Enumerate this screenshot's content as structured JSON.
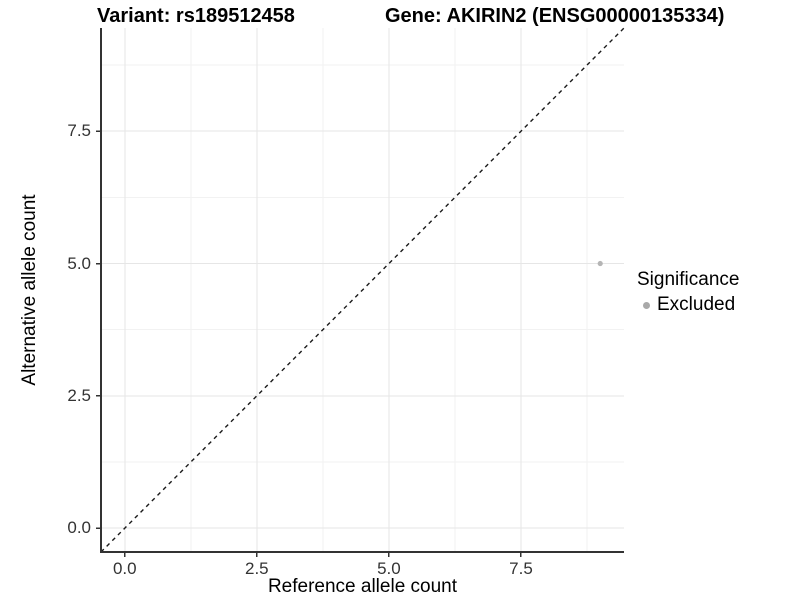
{
  "header": {
    "variant_title": "Variant: rs189512458",
    "gene_title": "Gene: AKIRIN2 (ENSG00000135334)"
  },
  "chart_data": {
    "type": "scatter",
    "title": "Variant: rs189512458    Gene: AKIRIN2 (ENSG00000135334)",
    "xlabel": "Reference allele count",
    "ylabel": "Alternative allele count",
    "xlim": [
      -0.45,
      9.45
    ],
    "ylim": [
      -0.45,
      9.45
    ],
    "x_ticks": [
      0,
      2.5,
      5,
      7.5
    ],
    "x_tick_labels": [
      "0.0",
      "2.5",
      "5.0",
      "7.5"
    ],
    "y_ticks": [
      0,
      2.5,
      5,
      7.5
    ],
    "y_tick_labels": [
      "0.0",
      "2.5",
      "5.0",
      "7.5"
    ],
    "grid_major": [
      0,
      2.5,
      5,
      7.5
    ],
    "grid_minor": [
      1.25,
      3.75,
      6.25,
      8.75
    ],
    "series": [
      {
        "name": "Excluded",
        "color": "#b5b5b5",
        "points": [
          {
            "x": 9,
            "y": 5
          }
        ]
      }
    ],
    "reference_line": {
      "slope": 1,
      "intercept": 0,
      "style": "dashed",
      "color": "#1a1a1a"
    },
    "legend": {
      "title": "Significance",
      "position": "right",
      "items": [
        {
          "label": "Excluded",
          "color": "#a9a9a9"
        }
      ]
    },
    "grid": true
  },
  "colors": {
    "background": "#ffffff",
    "grid_major": "#e6e6e6",
    "grid_minor": "#f2f2f2",
    "axis_line": "#333333",
    "tick_mark": "#333333",
    "tick_label": "#333333",
    "point": "#b5b5b5",
    "dashed_line": "#1a1a1a"
  }
}
